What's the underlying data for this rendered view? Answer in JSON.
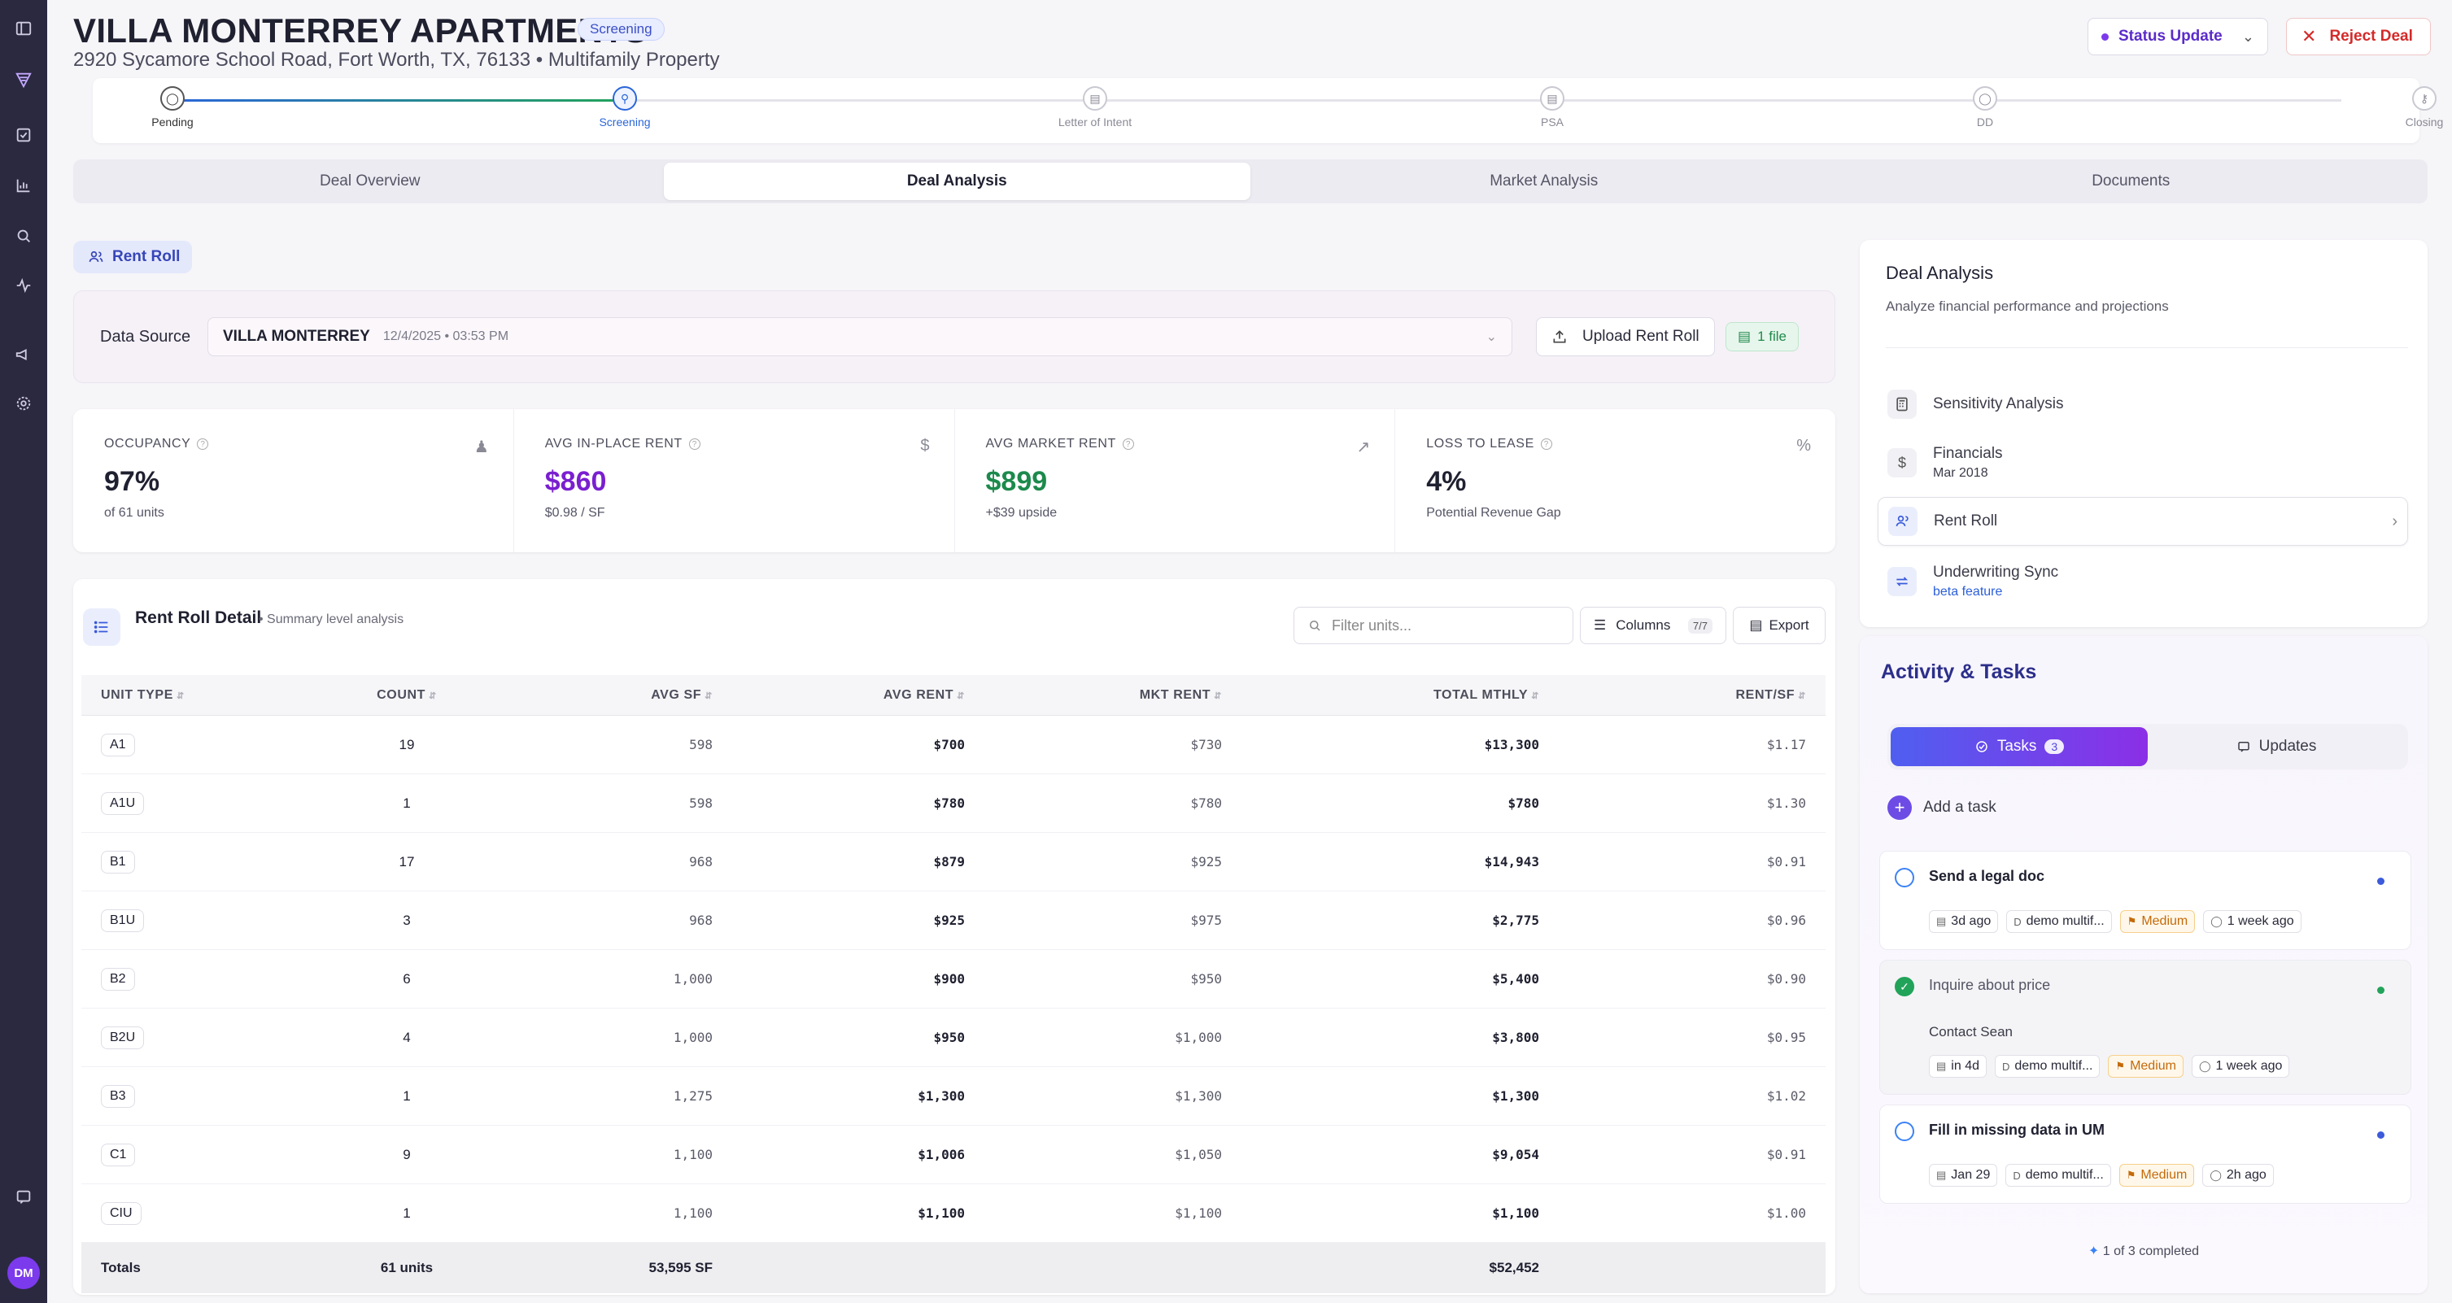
{
  "sidebar": {
    "icons": [
      "sidebar-toggle-icon",
      "logo-icon",
      "tasks-icon",
      "chart-icon",
      "search-icon",
      "activity-icon",
      "megaphone-icon",
      "settings-icon",
      "feedback-icon"
    ],
    "avatar": "DM"
  },
  "header": {
    "title": "VILLA MONTERREY APARTMENTS",
    "badge": "Screening",
    "subtitle": "2920 Sycamore School Road, Fort Worth, TX, 76133 • Multifamily Property",
    "status_button": "Status Update",
    "reject_button": "Reject Deal"
  },
  "progress": {
    "steps": [
      "Pending",
      "Screening",
      "Letter of Intent",
      "PSA",
      "DD",
      "Closing"
    ],
    "current_step": "Screening"
  },
  "tabs": [
    "Deal Overview",
    "Deal Analysis",
    "Market Analysis",
    "Documents"
  ],
  "active_tab": "Deal Analysis",
  "rent_roll_pill": "Rent Roll",
  "data_source": {
    "label": "Data Source",
    "name": "VILLA MONTERREY",
    "date": "12/4/2025 • 03:53 PM",
    "upload_button": "Upload Rent Roll",
    "files_badge": "1 file"
  },
  "metrics": [
    {
      "label": "OCCUPANCY",
      "value": "97%",
      "sub": "of 61 units"
    },
    {
      "label": "AVG IN-PLACE RENT",
      "value": "$860",
      "sub": "$0.98 / SF"
    },
    {
      "label": "AVG MARKET RENT",
      "value": "$899",
      "sub": "+$39 upside"
    },
    {
      "label": "LOSS TO LEASE",
      "value": "4%",
      "sub": "Potential Revenue Gap"
    }
  ],
  "rent_roll_table": {
    "title": "Rent Roll Detail",
    "subtitle": "Summary level analysis",
    "filter_placeholder": "Filter units...",
    "columns_button": "Columns",
    "columns_count": "7/7",
    "export_button": "Export",
    "headers": [
      "UNIT TYPE",
      "COUNT",
      "AVG SF",
      "AVG RENT",
      "MKT RENT",
      "TOTAL MTHLY",
      "RENT/SF"
    ],
    "rows": [
      [
        "A1",
        "19",
        "598",
        "$700",
        "$730",
        "$13,300",
        "$1.17"
      ],
      [
        "A1U",
        "1",
        "598",
        "$780",
        "$780",
        "$780",
        "$1.30"
      ],
      [
        "B1",
        "17",
        "968",
        "$879",
        "$925",
        "$14,943",
        "$0.91"
      ],
      [
        "B1U",
        "3",
        "968",
        "$925",
        "$975",
        "$2,775",
        "$0.96"
      ],
      [
        "B2",
        "6",
        "1,000",
        "$900",
        "$950",
        "$5,400",
        "$0.90"
      ],
      [
        "B2U",
        "4",
        "1,000",
        "$950",
        "$1,000",
        "$3,800",
        "$0.95"
      ],
      [
        "B3",
        "1",
        "1,275",
        "$1,300",
        "$1,300",
        "$1,300",
        "$1.02"
      ],
      [
        "C1",
        "9",
        "1,100",
        "$1,006",
        "$1,050",
        "$9,054",
        "$0.91"
      ],
      [
        "CIU",
        "1",
        "1,100",
        "$1,100",
        "$1,100",
        "$1,100",
        "$1.00"
      ]
    ],
    "totals": {
      "label": "Totals",
      "count": "61 units",
      "sf": "53,595 SF",
      "total": "$52,452"
    }
  },
  "deal_analysis": {
    "title": "Deal Analysis",
    "subtitle": "Analyze financial performance and projections",
    "items": [
      {
        "label": "Sensitivity Analysis",
        "sub": ""
      },
      {
        "label": "Financials",
        "sub": "Mar 2018"
      },
      {
        "label": "Rent Roll",
        "sub": ""
      },
      {
        "label": "Underwriting Sync",
        "sub": "beta feature"
      }
    ]
  },
  "activity": {
    "title": "Activity & Tasks",
    "tasks_tab": "Tasks",
    "tasks_count": "3",
    "updates_tab": "Updates",
    "add_task": "Add a task",
    "tasks": [
      {
        "title": "Send a legal doc",
        "desc": "",
        "due": "3d ago",
        "owner": "demo multif...",
        "priority": "Medium",
        "created": "1 week ago",
        "done": false
      },
      {
        "title": "Inquire about price",
        "desc": "Contact Sean",
        "due": "in 4d",
        "owner": "demo multif...",
        "priority": "Medium",
        "created": "1 week ago",
        "done": true
      },
      {
        "title": "Fill in missing data in UM",
        "desc": "",
        "due": "Jan 29",
        "owner": "demo multif...",
        "priority": "Medium",
        "created": "2h ago",
        "done": false
      }
    ],
    "completed_text": "1 of 3 completed"
  }
}
